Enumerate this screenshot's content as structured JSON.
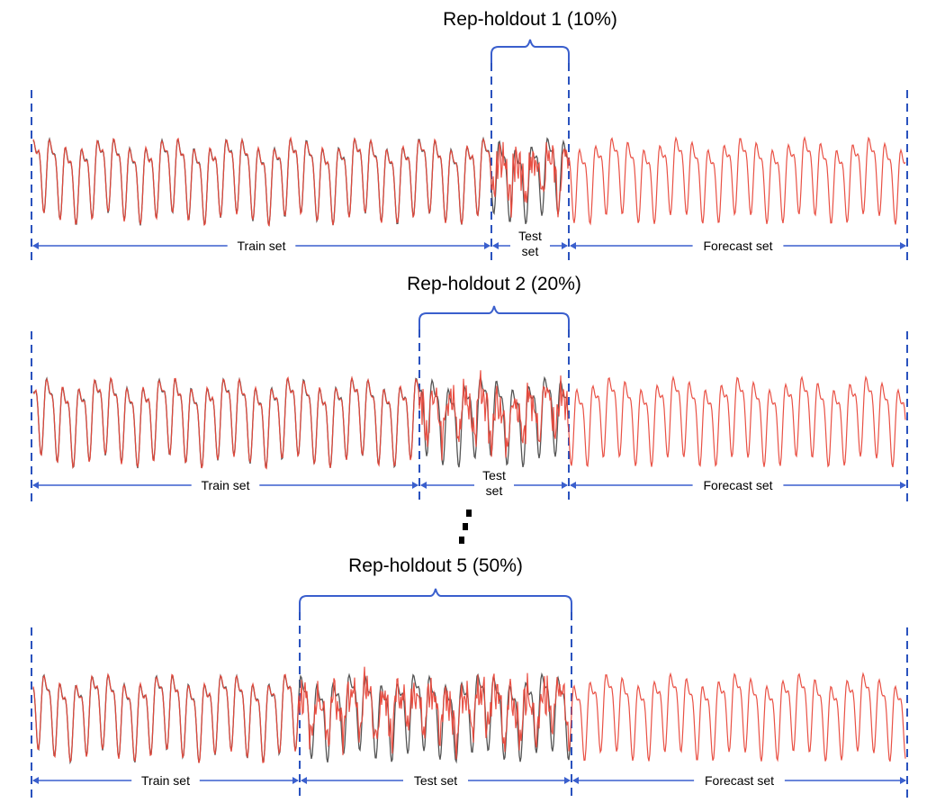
{
  "panels": [
    {
      "title": "Rep-holdout 1 (10%)",
      "segments": {
        "train": "Train set",
        "test": [
          "Test",
          "set"
        ],
        "forecast": "Forecast set"
      }
    },
    {
      "title": "Rep-holdout 2 (20%)",
      "segments": {
        "train": "Train set",
        "test": [
          "Test",
          "set"
        ],
        "forecast": "Forecast set"
      }
    },
    {
      "title": "Rep-holdout 5 (50%)",
      "segments": {
        "train": "Train set",
        "test": [
          "Test set"
        ],
        "forecast": "Forecast set"
      }
    }
  ],
  "colors": {
    "divider": "#2a52be",
    "arrow": "#3a5fcd",
    "actual_series": "#555555",
    "forecast_series": "#e8473a",
    "ellipsis": "#000000"
  }
}
